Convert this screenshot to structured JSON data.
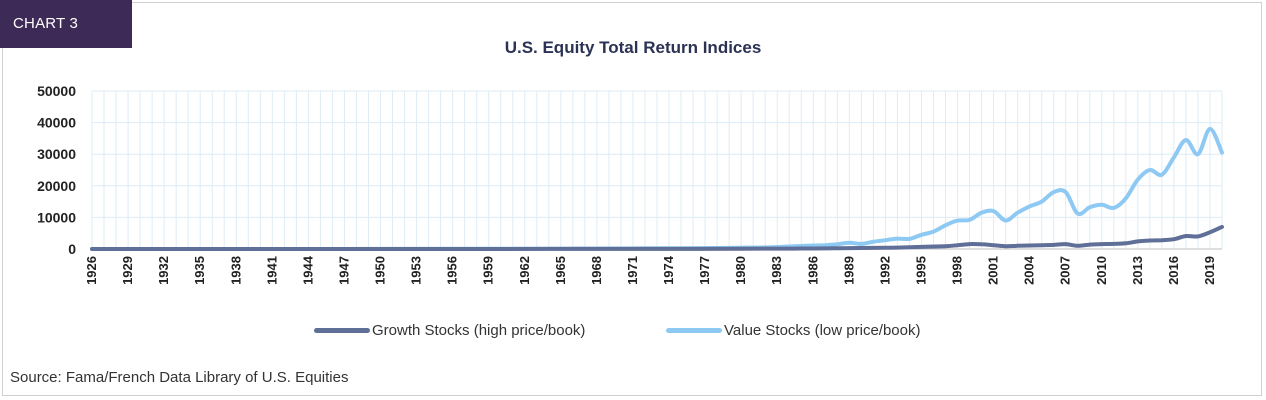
{
  "badge": "CHART 3",
  "source_note": "Source: Fama/French Data Library of U.S. Equities",
  "colors": {
    "growth": "#5f6f98",
    "value": "#8ec9f3",
    "badge_bg": "#3d2a56",
    "grid": "#ddecf6"
  },
  "chart_data": {
    "type": "line",
    "title": "U.S. Equity Total Return Indices",
    "xlabel": "",
    "ylabel": "",
    "ylim": [
      0,
      50000
    ],
    "yticks": [
      "0",
      "10000",
      "20000",
      "30000",
      "40000",
      "50000"
    ],
    "xlim": [
      1926,
      2020
    ],
    "xticks": [
      "1926",
      "1929",
      "1932",
      "1935",
      "1938",
      "1941",
      "1944",
      "1947",
      "1950",
      "1953",
      "1956",
      "1959",
      "1962",
      "1965",
      "1968",
      "1971",
      "1974",
      "1977",
      "1980",
      "1983",
      "1986",
      "1989",
      "1992",
      "1995",
      "1998",
      "2001",
      "2004",
      "2007",
      "2010",
      "2013",
      "2016",
      "2019"
    ],
    "grid": true,
    "legend_position": "bottom",
    "series": [
      {
        "name": "Growth Stocks (high price/book)",
        "color": "#5f6f98",
        "points": [
          [
            1926,
            1
          ],
          [
            1940,
            2
          ],
          [
            1950,
            4
          ],
          [
            1960,
            12
          ],
          [
            1970,
            30
          ],
          [
            1975,
            40
          ],
          [
            1980,
            80
          ],
          [
            1983,
            120
          ],
          [
            1985,
            150
          ],
          [
            1987,
            200
          ],
          [
            1989,
            300
          ],
          [
            1991,
            350
          ],
          [
            1993,
            450
          ],
          [
            1995,
            650
          ],
          [
            1997,
            900
          ],
          [
            1998,
            1200
          ],
          [
            1999,
            1550
          ],
          [
            2000,
            1500
          ],
          [
            2001,
            1200
          ],
          [
            2002,
            900
          ],
          [
            2003,
            1000
          ],
          [
            2004,
            1100
          ],
          [
            2005,
            1200
          ],
          [
            2006,
            1300
          ],
          [
            2007,
            1550
          ],
          [
            2008,
            1000
          ],
          [
            2009,
            1400
          ],
          [
            2010,
            1550
          ],
          [
            2011,
            1600
          ],
          [
            2012,
            1800
          ],
          [
            2013,
            2400
          ],
          [
            2014,
            2700
          ],
          [
            2015,
            2800
          ],
          [
            2016,
            3100
          ],
          [
            2017,
            4100
          ],
          [
            2018,
            4000
          ],
          [
            2019,
            5300
          ],
          [
            2020,
            7000
          ]
        ]
      },
      {
        "name": "Value Stocks (low price/book)",
        "color": "#8ec9f3",
        "points": [
          [
            1926,
            1
          ],
          [
            1940,
            5
          ],
          [
            1950,
            20
          ],
          [
            1960,
            60
          ],
          [
            1970,
            150
          ],
          [
            1975,
            250
          ],
          [
            1980,
            400
          ],
          [
            1982,
            500
          ],
          [
            1984,
            800
          ],
          [
            1986,
            1100
          ],
          [
            1987,
            1200
          ],
          [
            1988,
            1500
          ],
          [
            1989,
            2000
          ],
          [
            1990,
            1600
          ],
          [
            1991,
            2300
          ],
          [
            1992,
            2800
          ],
          [
            1993,
            3300
          ],
          [
            1994,
            3200
          ],
          [
            1995,
            4500
          ],
          [
            1996,
            5500
          ],
          [
            1997,
            7500
          ],
          [
            1998,
            9000
          ],
          [
            1999,
            9200
          ],
          [
            2000,
            11500
          ],
          [
            2001,
            12000
          ],
          [
            2002,
            9000
          ],
          [
            2003,
            11500
          ],
          [
            2004,
            13500
          ],
          [
            2005,
            15000
          ],
          [
            2006,
            18000
          ],
          [
            2007,
            18000
          ],
          [
            2008,
            11200
          ],
          [
            2009,
            13200
          ],
          [
            2010,
            14000
          ],
          [
            2011,
            13000
          ],
          [
            2012,
            16000
          ],
          [
            2013,
            22000
          ],
          [
            2014,
            25000
          ],
          [
            2015,
            23500
          ],
          [
            2016,
            29000
          ],
          [
            2017,
            34500
          ],
          [
            2018,
            30000
          ],
          [
            2019,
            38000
          ],
          [
            2020,
            30500
          ]
        ]
      }
    ]
  }
}
